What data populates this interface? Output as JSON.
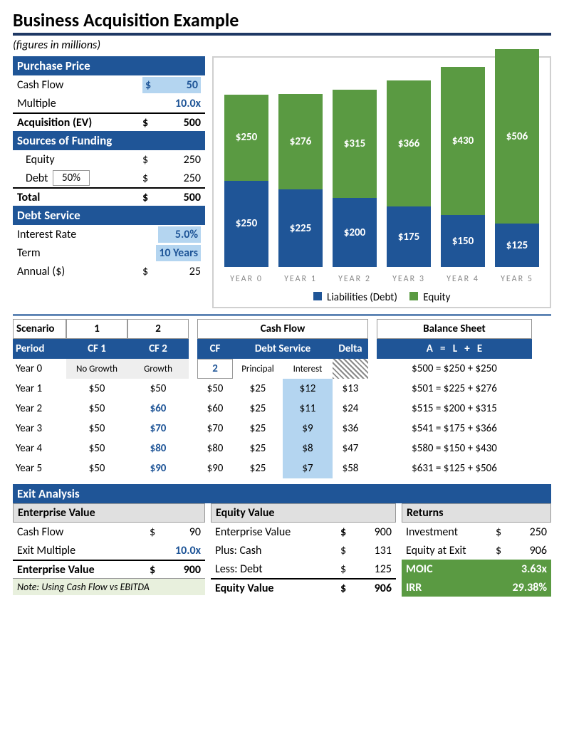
{
  "title": "Business Acquisition Example",
  "subtitle": "(figures in millions)",
  "purchase_price": {
    "header": "Purchase Price",
    "cash_flow_label": "Cash Flow",
    "cash_flow_curr": "$",
    "cash_flow_val": "50",
    "multiple_label": "Multiple",
    "multiple_val": "10.0x",
    "acq_label": "Acquisition (EV)",
    "acq_curr": "$",
    "acq_val": "500"
  },
  "sources": {
    "header": "Sources of Funding",
    "equity_label": "Equity",
    "equity_curr": "$",
    "equity_val": "250",
    "debt_label": "Debt",
    "debt_pct": "50%",
    "debt_curr": "$",
    "debt_val": "250",
    "total_label": "Total",
    "total_curr": "$",
    "total_val": "500"
  },
  "debt_service": {
    "header": "Debt Service",
    "rate_label": "Interest Rate",
    "rate_val": "5.0%",
    "term_label": "Term",
    "term_val": "10 Years",
    "annual_label": "Annual ($)",
    "annual_curr": "$",
    "annual_val": "25"
  },
  "chart": {
    "type": "stacked-bar",
    "max_val": 640,
    "bars": [
      {
        "year": "YEAR 0",
        "debt": 250,
        "equity": 250
      },
      {
        "year": "YEAR 1",
        "debt": 225,
        "equity": 276
      },
      {
        "year": "YEAR 2",
        "debt": 200,
        "equity": 315
      },
      {
        "year": "YEAR 3",
        "debt": 175,
        "equity": 366
      },
      {
        "year": "YEAR 4",
        "debt": 150,
        "equity": 430
      },
      {
        "year": "YEAR 5",
        "debt": 125,
        "equity": 506
      }
    ],
    "legend_debt": "Liabilities (Debt)",
    "legend_equity": "Equity",
    "color_debt": "#1f5597",
    "color_equity": "#5a9a42"
  },
  "table": {
    "hdr_scenario": "Scenario",
    "hdr_s1": "1",
    "hdr_s2": "2",
    "hdr_cf": "Cash Flow",
    "hdr_bs": "Balance Sheet",
    "h2_period": "Period",
    "h2_cf1": "CF 1",
    "h2_cf2": "CF 2",
    "h2_cf": "CF",
    "h2_ds": "Debt Service",
    "h2_delta": "Delta",
    "h2_bs": "A   =   L   +   E",
    "r0_period": "Year 0",
    "r0_cf1": "No Growth",
    "r0_cf2": "Growth",
    "r0_cf": "2",
    "r0_prin": "Principal",
    "r0_int": "Interest",
    "r0_bs": "$500 = $250 + $250",
    "rows": [
      {
        "period": "Year 1",
        "cf1": "$50",
        "cf2": "$50",
        "cf2_highlight": false,
        "cf": "$50",
        "prin": "$25",
        "int": "$12",
        "delta": "$13",
        "bs": "$501 = $225 + $276"
      },
      {
        "period": "Year 2",
        "cf1": "$50",
        "cf2": "$60",
        "cf2_highlight": true,
        "cf": "$60",
        "prin": "$25",
        "int": "$11",
        "delta": "$24",
        "bs": "$515 = $200 + $315"
      },
      {
        "period": "Year 3",
        "cf1": "$50",
        "cf2": "$70",
        "cf2_highlight": true,
        "cf": "$70",
        "prin": "$25",
        "int": "$9",
        "delta": "$36",
        "bs": "$541 = $175 + $366"
      },
      {
        "period": "Year 4",
        "cf1": "$50",
        "cf2": "$80",
        "cf2_highlight": true,
        "cf": "$80",
        "prin": "$25",
        "int": "$8",
        "delta": "$47",
        "bs": "$580 = $150 + $430"
      },
      {
        "period": "Year 5",
        "cf1": "$50",
        "cf2": "$90",
        "cf2_highlight": true,
        "cf": "$90",
        "prin": "$25",
        "int": "$7",
        "delta": "$58",
        "bs": "$631 = $125 + $506"
      }
    ]
  },
  "exit": {
    "header": "Exit Analysis",
    "ev_hdr": "Enterprise Value",
    "ev_cf_lbl": "Cash Flow",
    "ev_cf_cur": "$",
    "ev_cf_val": "90",
    "ev_mult_lbl": "Exit Multiple",
    "ev_mult_val": "10.0x",
    "ev_tot_lbl": "Enterprise Value",
    "ev_tot_cur": "$",
    "ev_tot_val": "900",
    "ev_note": "Note: Using Cash Flow vs EBITDA",
    "eq_hdr": "Equity Value",
    "eq_ev_lbl": "Enterprise Value",
    "eq_ev_cur": "$",
    "eq_ev_val": "900",
    "eq_cash_lbl": "Plus: Cash",
    "eq_cash_cur": "$",
    "eq_cash_val": "131",
    "eq_debt_lbl": "Less: Debt",
    "eq_debt_cur": "$",
    "eq_debt_val": "125",
    "eq_tot_lbl": "Equity Value",
    "eq_tot_cur": "$",
    "eq_tot_val": "906",
    "ret_hdr": "Returns",
    "ret_inv_lbl": "Investment",
    "ret_inv_cur": "$",
    "ret_inv_val": "250",
    "ret_eq_lbl": "Equity at Exit",
    "ret_eq_cur": "$",
    "ret_eq_val": "906",
    "ret_moic_lbl": "MOIC",
    "ret_moic_val": "3.63x",
    "ret_irr_lbl": "IRR",
    "ret_irr_val": "29.38%"
  }
}
